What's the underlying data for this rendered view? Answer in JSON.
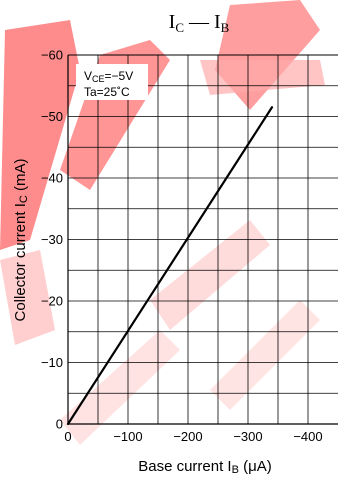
{
  "chart_data": {
    "type": "line",
    "title": {
      "main": "I",
      "sub1": "C",
      "dash": " — ",
      "main2": "I",
      "sub2": "B"
    },
    "xlabel": {
      "prefix": "Base current   I",
      "sub": "B",
      "unit": "  (μA)"
    },
    "ylabel": {
      "prefix": "Collector current   I",
      "sub": "C",
      "unit": "  (mA)"
    },
    "conditions": [
      {
        "prefix": "V",
        "sub": "CE",
        "rest": "=−5V"
      },
      {
        "prefix": "Ta=25˚C",
        "sub": "",
        "rest": ""
      }
    ],
    "x_ticks": [
      0,
      -50,
      -100,
      -150,
      -200,
      -250,
      -300,
      -350,
      -400
    ],
    "x_tick_labels": [
      "0",
      "",
      "−100",
      "",
      "−200",
      "",
      "−300",
      "",
      "−400"
    ],
    "y_ticks": [
      0,
      -5,
      -10,
      -15,
      -20,
      -25,
      -30,
      -35,
      -40,
      -45,
      -50,
      -55,
      -60
    ],
    "y_tick_labels": [
      "0",
      "",
      "−10",
      "",
      "−20",
      "",
      "−30",
      "",
      "−40",
      "",
      "−50",
      "",
      "−60"
    ],
    "xlim": [
      0,
      -450
    ],
    "ylim": [
      0,
      -60
    ],
    "grid": true,
    "series": [
      {
        "color": "#000000",
        "x": [
          0,
          -340
        ],
        "y": [
          0,
          -51.5
        ]
      }
    ],
    "watermark_color": "#ff1a1a"
  }
}
